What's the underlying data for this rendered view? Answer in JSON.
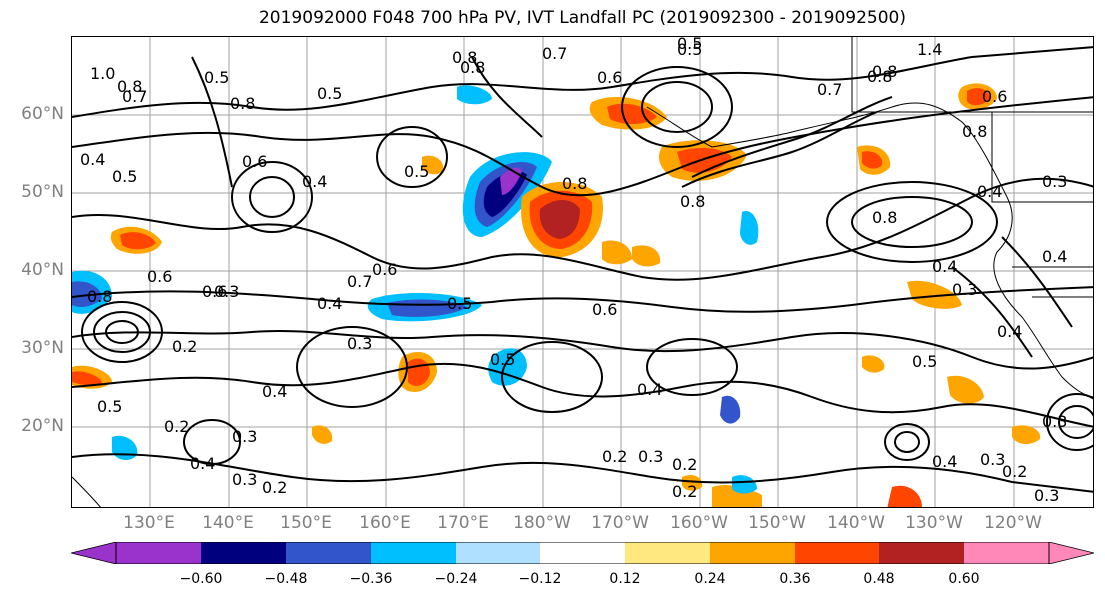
{
  "title": "2019092000 F048 700 hPa PV, IVT Landfall PC (2019092300 - 2019092500)",
  "lat_labels": [
    "60°N",
    "50°N",
    "40°N",
    "30°N",
    "20°N"
  ],
  "lon_labels": [
    "130°E",
    "140°E",
    "150°E",
    "160°E",
    "170°E",
    "180°W",
    "170°W",
    "160°W",
    "150°W",
    "140°W",
    "130°W",
    "120°W"
  ],
  "colorbar": {
    "colors": [
      "#9933cc",
      "#00007f",
      "#3355cc",
      "#00bfff",
      "#b0e0ff",
      "#ffffff",
      "#ffe87f",
      "#ffa500",
      "#ff4500",
      "#b22222",
      "#ff88b8"
    ],
    "ticks": [
      "−0.60",
      "−0.48",
      "−0.36",
      "−0.24",
      "−0.12",
      "0.12",
      "0.24",
      "0.36",
      "0.48",
      "0.60"
    ]
  },
  "contour_labels": [
    "0.8",
    "0.7",
    "0.5",
    "1.0",
    "0.8",
    "0.8",
    "0.4",
    "0.5",
    "0.5",
    "0.7",
    "0.6",
    "0.8",
    "0.8",
    "0.5",
    "0.6",
    "0.4",
    "0.5",
    "0.8",
    "0.5",
    "0.8",
    "0.6",
    "0.7",
    "0.8",
    "0.5",
    "0.4",
    "0.6",
    "0.7",
    "0.4",
    "0.5",
    "0.6",
    "0.8",
    "0.2",
    "0.3",
    "0.5",
    "0.4",
    "0.4",
    "0.2",
    "0.4",
    "0.3",
    "0.2",
    "0.3",
    "0.2",
    "0.5",
    "0.3",
    "0.2",
    "0.4",
    "0.3",
    "0.4",
    "0.6",
    "0.8",
    "1.4",
    "0.8",
    "0.6",
    "0.3",
    "0.4",
    "0.4",
    "0.3",
    "0.3",
    "0.2",
    "0.2",
    "0.3",
    "0.3"
  ]
}
